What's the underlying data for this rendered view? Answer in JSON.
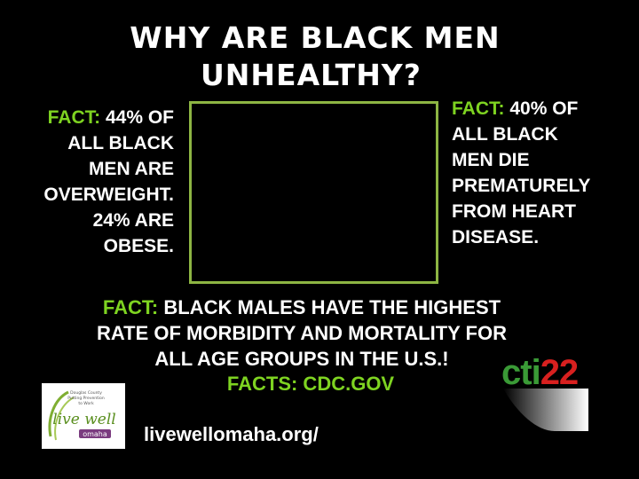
{
  "title": {
    "line1": "WHY ARE BLACK MEN",
    "line2": "UNHEALTHY?"
  },
  "left_fact": {
    "tag": "FACT:",
    "lines": [
      "44% OF",
      "ALL BLACK",
      "MEN ARE",
      "OVERWEIGHT.",
      "24% ARE",
      "OBESE."
    ]
  },
  "right_fact": {
    "tag": "FACT:",
    "lines": [
      "40% OF",
      "ALL BLACK",
      "MEN DIE",
      "PREMATURELY",
      "FROM HEART",
      "DISEASE."
    ]
  },
  "bottom_fact": {
    "tag": "FACT:",
    "line1": "BLACK MALES HAVE THE HIGHEST",
    "line2": "RATE OF MORBIDITY AND MORTALITY FOR",
    "line3": "ALL AGE GROUPS IN THE U.S.!"
  },
  "sources": "FACTS:  CDC.GOV",
  "url": "livewellomaha.org/",
  "livewell_logo": {
    "brand": "live well",
    "city": "omaha",
    "tagline_lines": [
      "Douglas County",
      "Putting Prevention",
      "to Work"
    ]
  },
  "cti_logo": {
    "part1": "cti",
    "part2": "22"
  },
  "colors": {
    "accent_green": "#7ed321",
    "frame": "#8db543",
    "cti_green": "#3a9a36",
    "cti_red": "#d8201f"
  }
}
